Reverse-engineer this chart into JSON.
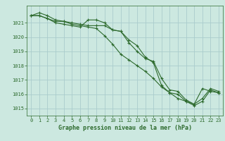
{
  "title": "Graphe pression niveau de la mer (hPa)",
  "bg_color": "#cce8e0",
  "grid_color": "#aacccc",
  "line_color": "#2d6a2d",
  "xlim": [
    -0.5,
    23.5
  ],
  "ylim": [
    1014.5,
    1022.2
  ],
  "yticks": [
    1015,
    1016,
    1017,
    1018,
    1019,
    1020,
    1021
  ],
  "xticks": [
    0,
    1,
    2,
    3,
    4,
    5,
    6,
    7,
    8,
    9,
    10,
    11,
    12,
    13,
    14,
    15,
    16,
    17,
    18,
    19,
    20,
    21,
    22,
    23
  ],
  "series1": [
    1021.5,
    1021.7,
    1021.5,
    1021.2,
    1021.1,
    1020.9,
    1020.8,
    1020.7,
    1020.6,
    1020.1,
    1019.5,
    1018.8,
    1018.4,
    1018.0,
    1017.6,
    1017.1,
    1016.5,
    1016.1,
    1015.7,
    1015.5,
    1015.3,
    1016.4,
    1016.2,
    1016.1
  ],
  "series2": [
    1021.5,
    1021.5,
    1021.3,
    1021.0,
    1020.9,
    1020.8,
    1020.7,
    1021.2,
    1021.2,
    1021.0,
    1020.5,
    1020.4,
    1019.6,
    1019.0,
    1018.5,
    1018.3,
    1017.1,
    1016.3,
    1016.2,
    1015.6,
    1015.3,
    1015.7,
    1016.4,
    1016.2
  ],
  "series3": [
    1021.5,
    1021.5,
    1021.3,
    1021.1,
    1021.1,
    1021.0,
    1020.9,
    1020.8,
    1020.8,
    1020.8,
    1020.5,
    1020.4,
    1019.8,
    1019.4,
    1018.6,
    1018.2,
    1016.6,
    1016.1,
    1016.0,
    1015.5,
    1015.2,
    1015.5,
    1016.3,
    1016.1
  ],
  "title_fontsize": 6,
  "tick_fontsize": 5,
  "linewidth": 0.8,
  "markersize": 3
}
